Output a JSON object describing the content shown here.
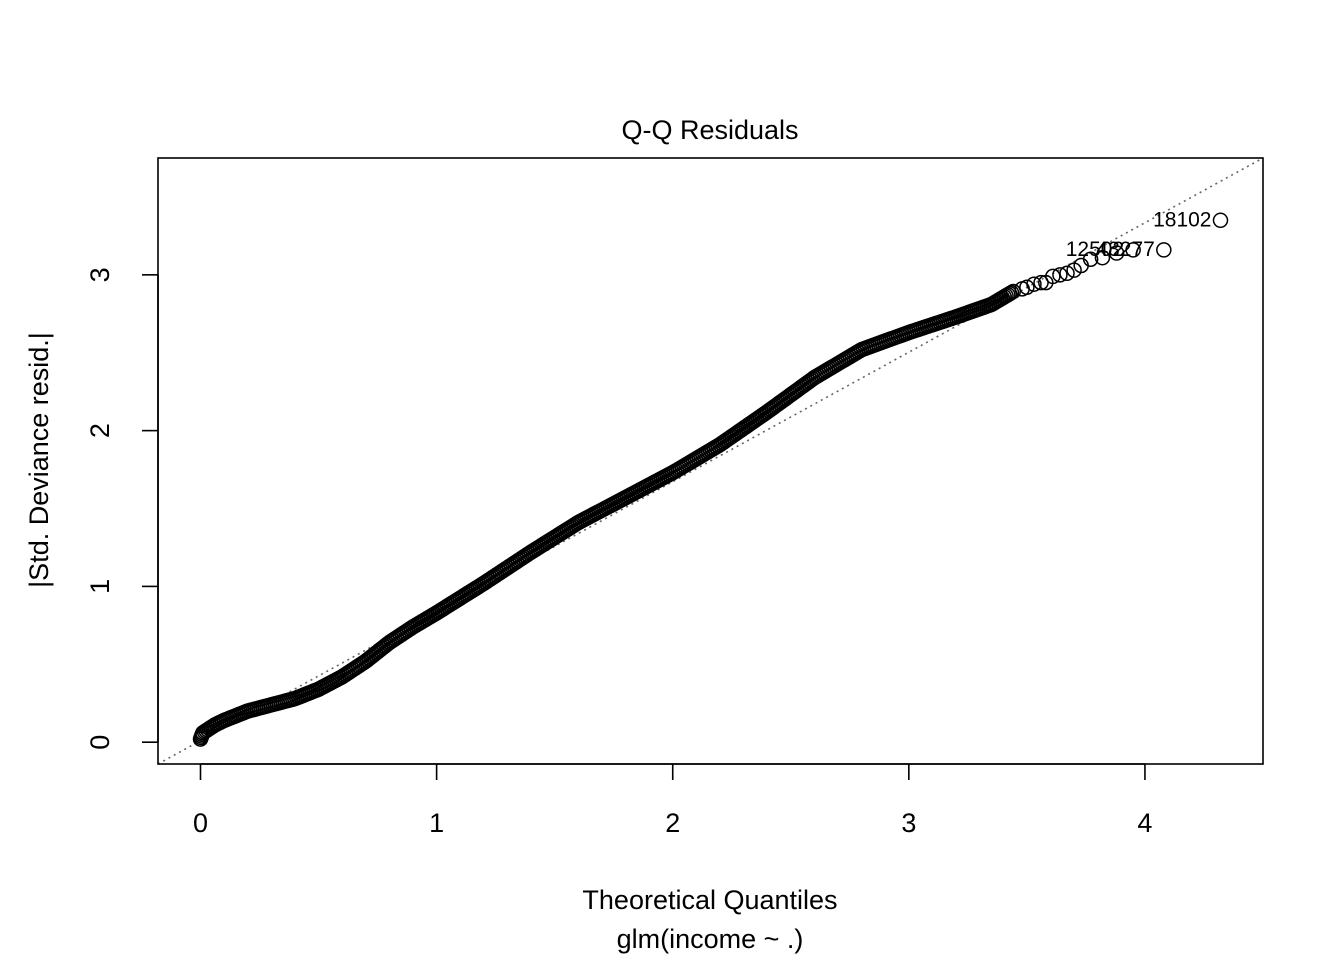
{
  "chart_data": {
    "type": "scatter",
    "title": "Q-Q Residuals",
    "xlabel": "Theoretical Quantiles",
    "sublabel": "glm(income ~ .)",
    "ylabel": "|Std. Deviance resid.|",
    "xlim": [
      -0.18,
      4.5
    ],
    "ylim": [
      -0.14,
      3.75
    ],
    "x_ticks": [
      0,
      1,
      2,
      3,
      4
    ],
    "x_tick_labels": [
      "0",
      "1",
      "2",
      "3",
      "4"
    ],
    "y_ticks": [
      0,
      1,
      2,
      3
    ],
    "y_tick_labels": [
      "0",
      "1",
      "2",
      "3"
    ],
    "grid": false,
    "legend": "none",
    "reference_line": {
      "style": "dotted",
      "color": "#666666",
      "points": [
        [
          -0.18,
          -0.14
        ],
        [
          4.5,
          3.75
        ]
      ]
    },
    "point_style": {
      "shape": "open-circle",
      "color": "#000000"
    },
    "curve_knots": [
      [
        0.0,
        0.02
      ],
      [
        0.01,
        0.06
      ],
      [
        0.03,
        0.08
      ],
      [
        0.06,
        0.11
      ],
      [
        0.1,
        0.14
      ],
      [
        0.15,
        0.17
      ],
      [
        0.2,
        0.2
      ],
      [
        0.3,
        0.24
      ],
      [
        0.4,
        0.28
      ],
      [
        0.5,
        0.34
      ],
      [
        0.6,
        0.42
      ],
      [
        0.7,
        0.52
      ],
      [
        0.8,
        0.64
      ],
      [
        0.9,
        0.74
      ],
      [
        1.0,
        0.83
      ],
      [
        1.2,
        1.02
      ],
      [
        1.4,
        1.22
      ],
      [
        1.6,
        1.41
      ],
      [
        1.8,
        1.57
      ],
      [
        2.0,
        1.73
      ],
      [
        2.2,
        1.91
      ],
      [
        2.4,
        2.12
      ],
      [
        2.6,
        2.34
      ],
      [
        2.8,
        2.52
      ],
      [
        3.0,
        2.63
      ],
      [
        3.2,
        2.73
      ],
      [
        3.35,
        2.81
      ],
      [
        3.45,
        2.9
      ]
    ],
    "tail_points": [
      [
        3.48,
        2.91
      ],
      [
        3.5,
        2.92
      ],
      [
        3.53,
        2.94
      ],
      [
        3.56,
        2.95
      ],
      [
        3.58,
        2.95
      ],
      [
        3.61,
        2.99
      ],
      [
        3.64,
        3.0
      ],
      [
        3.67,
        3.01
      ],
      [
        3.7,
        3.03
      ],
      [
        3.73,
        3.06
      ],
      [
        3.77,
        3.1
      ],
      [
        3.82,
        3.11
      ],
      [
        3.88,
        3.14
      ],
      [
        3.95,
        3.16
      ],
      [
        4.08,
        3.16
      ],
      [
        4.32,
        3.35
      ]
    ],
    "annotations": [
      {
        "text": "18102",
        "x": 4.32,
        "y": 3.35
      },
      {
        "text": "43277",
        "x": 4.08,
        "y": 3.16
      },
      {
        "text": "12502",
        "x": 3.95,
        "y": 3.16
      }
    ]
  }
}
